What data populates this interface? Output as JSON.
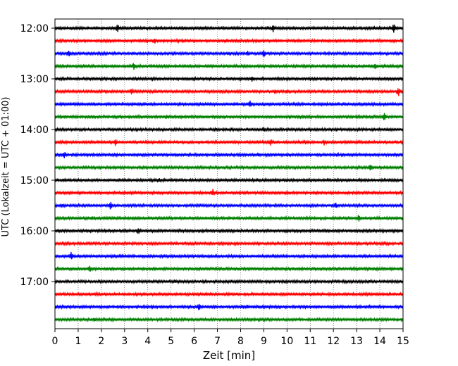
{
  "chart_data": {
    "type": "line",
    "title": "",
    "xlabel": "Zeit  [min]",
    "ylabel": "UTC (Lokalzeit = UTC + 01:00)",
    "xlim": [
      0,
      15
    ],
    "x_ticks": [
      0,
      1,
      2,
      3,
      4,
      5,
      6,
      7,
      8,
      9,
      10,
      11,
      12,
      13,
      14,
      15
    ],
    "x_tick_labels": [
      "0",
      "1",
      "2",
      "3",
      "4",
      "5",
      "6",
      "7",
      "8",
      "9",
      "10",
      "11",
      "12",
      "13",
      "14",
      "15"
    ],
    "y_tick_labels": [
      "12:00",
      "13:00",
      "14:00",
      "15:00",
      "16:00",
      "17:00"
    ],
    "y_tick_trace_index": [
      0,
      4,
      8,
      12,
      16,
      20
    ],
    "grid": "vertical-dotted",
    "trace_minutes": 15,
    "color_cycle": [
      "#000000",
      "#ff0000",
      "#0000ff",
      "#008000"
    ],
    "series": [
      {
        "start": "12:00",
        "spikes": [
          [
            2.7,
            7
          ],
          [
            9.4,
            6
          ],
          [
            14.6,
            8
          ]
        ]
      },
      {
        "start": "12:15",
        "spikes": [
          [
            4.3,
            6
          ],
          [
            7.4,
            4
          ],
          [
            9.5,
            3
          ]
        ]
      },
      {
        "start": "12:30",
        "spikes": [
          [
            0.6,
            7
          ],
          [
            7.5,
            3
          ],
          [
            8.3,
            4
          ],
          [
            9.0,
            7
          ]
        ]
      },
      {
        "start": "12:45",
        "spikes": [
          [
            3.4,
            7
          ],
          [
            13.8,
            6
          ]
        ]
      },
      {
        "start": "13:00",
        "spikes": [
          [
            8.5,
            5
          ]
        ]
      },
      {
        "start": "13:15",
        "spikes": [
          [
            3.3,
            6
          ],
          [
            9.5,
            5
          ],
          [
            10.0,
            4
          ],
          [
            14.8,
            8
          ]
        ]
      },
      {
        "start": "13:30",
        "spikes": [
          [
            8.4,
            7
          ]
        ]
      },
      {
        "start": "13:45",
        "spikes": [
          [
            4.8,
            4
          ],
          [
            14.2,
            8
          ]
        ]
      },
      {
        "start": "14:00",
        "spikes": [
          [
            9.0,
            4
          ]
        ]
      },
      {
        "start": "14:15",
        "spikes": [
          [
            2.6,
            6
          ],
          [
            9.3,
            6
          ],
          [
            11.6,
            5
          ]
        ]
      },
      {
        "start": "14:30",
        "spikes": [
          [
            0.4,
            6
          ],
          [
            8.8,
            4
          ],
          [
            10.0,
            3
          ]
        ]
      },
      {
        "start": "14:45",
        "spikes": [
          [
            13.6,
            6
          ]
        ]
      },
      {
        "start": "15:00",
        "spikes": [
          [
            4.5,
            4
          ],
          [
            7.8,
            3
          ],
          [
            10.0,
            3
          ]
        ]
      },
      {
        "start": "15:15",
        "spikes": [
          [
            6.8,
            6
          ],
          [
            10.1,
            3
          ]
        ]
      },
      {
        "start": "15:30",
        "spikes": [
          [
            0.3,
            4
          ],
          [
            2.4,
            7
          ],
          [
            12.1,
            6
          ]
        ]
      },
      {
        "start": "15:45",
        "spikes": [
          [
            1.6,
            4
          ],
          [
            13.1,
            7
          ]
        ]
      },
      {
        "start": "16:00",
        "spikes": [
          [
            3.6,
            7
          ]
        ]
      },
      {
        "start": "16:15",
        "spikes": []
      },
      {
        "start": "16:30",
        "spikes": [
          [
            0.7,
            7
          ]
        ]
      },
      {
        "start": "16:45",
        "spikes": [
          [
            1.5,
            6
          ]
        ]
      },
      {
        "start": "17:00",
        "spikes": [
          [
            5.2,
            3
          ]
        ]
      },
      {
        "start": "17:15",
        "spikes": []
      },
      {
        "start": "17:30",
        "spikes": [
          [
            6.2,
            7
          ],
          [
            8.1,
            4
          ],
          [
            8.3,
            4
          ]
        ]
      },
      {
        "start": "17:45",
        "spikes": [
          [
            1.7,
            4
          ]
        ]
      }
    ]
  }
}
